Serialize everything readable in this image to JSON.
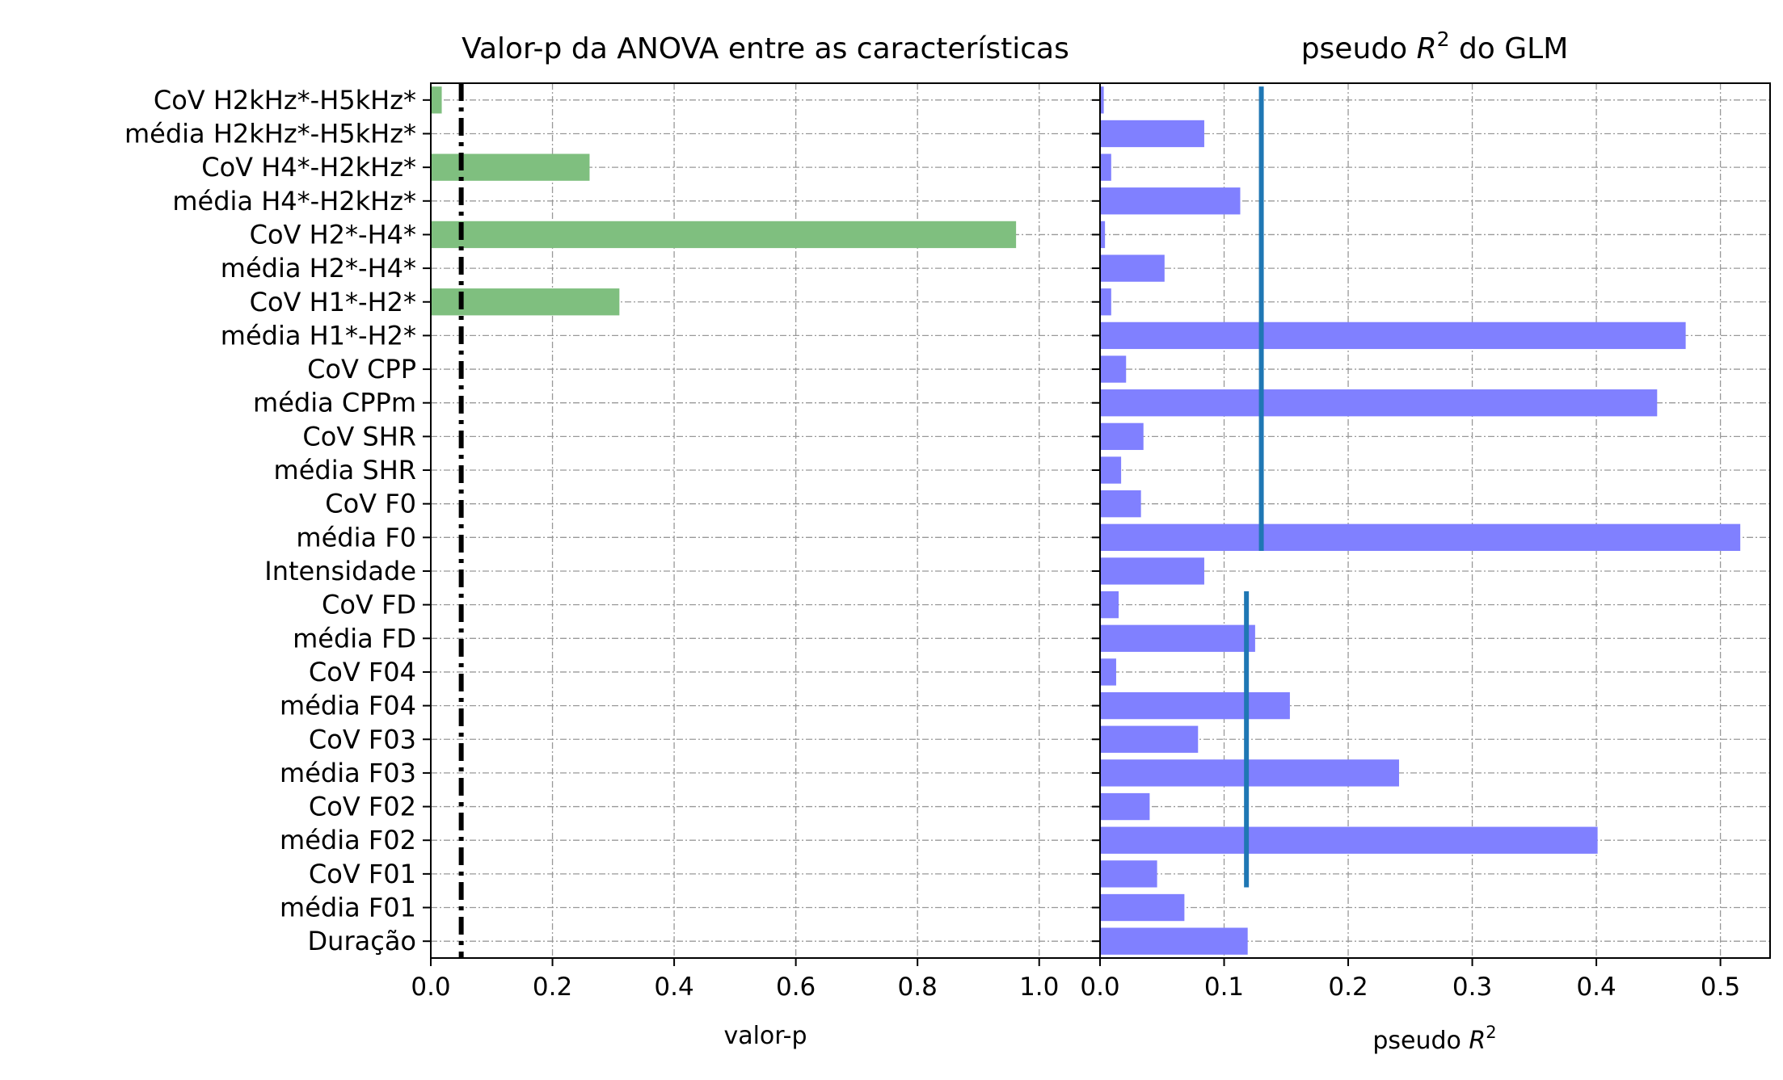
{
  "chart_data": [
    {
      "type": "bar",
      "orientation": "horizontal",
      "title": "Valor-p da ANOVA entre as características",
      "xlabel": "valor-p",
      "xlim": [
        0,
        1.1
      ],
      "xticks": [
        "0.0",
        "0.2",
        "0.4",
        "0.6",
        "0.8",
        "1.0"
      ],
      "grid": true,
      "bar_color": "#7fbf7f",
      "threshold_line": {
        "x": 0.05,
        "style": "dashdot",
        "color": "#000000"
      },
      "categories": [
        "CoV H2kHz*-H5kHz*",
        "média H2kHz*-H5kHz*",
        "CoV H4*-H2kHz*",
        "média H4*-H2kHz*",
        "CoV H2*-H4*",
        "média H2*-H4*",
        "CoV H1*-H2*",
        "média H1*-H2*",
        "CoV CPP",
        "média CPPm",
        "CoV SHR",
        "média SHR",
        "CoV F0",
        "média F0",
        "Intensidade",
        "CoV FD",
        "média FD",
        "CoV F04",
        "média F04",
        "CoV F03",
        "média F03",
        "CoV F02",
        "média F02",
        "CoV F01",
        "média F01",
        "Duração"
      ],
      "values": [
        0.018,
        0.0,
        0.261,
        0.0,
        0.962,
        0.0,
        0.31,
        0.0,
        0.0,
        0.0,
        0.0,
        0.0,
        0.0,
        0.0,
        0.0,
        0.0,
        0.0,
        0.0,
        0.0,
        0.0,
        0.0,
        0.0,
        0.0,
        0.0,
        0.0,
        0.0
      ]
    },
    {
      "type": "bar",
      "orientation": "horizontal",
      "title_prefix": "pseudo ",
      "title_math": "R",
      "title_sup": "2",
      "title_suffix": " do GLM",
      "xlabel_prefix": "pseudo ",
      "xlabel_math": "R",
      "xlabel_sup": "2",
      "xlim": [
        0,
        0.54
      ],
      "xticks": [
        "0.0",
        "0.1",
        "0.2",
        "0.3",
        "0.4",
        "0.5"
      ],
      "grid": true,
      "bar_color": "#8080ff",
      "reference_lines": [
        {
          "x": 0.13,
          "from_category": "CoV H2kHz*-H5kHz*",
          "to_category": "média F0",
          "color": "#1f77b4"
        },
        {
          "x": 0.118,
          "from_category": "CoV FD",
          "to_category": "CoV F01",
          "color": "#1f77b4"
        }
      ],
      "categories": [
        "CoV H2kHz*-H5kHz*",
        "média H2kHz*-H5kHz*",
        "CoV H4*-H2kHz*",
        "média H4*-H2kHz*",
        "CoV H2*-H4*",
        "média H2*-H4*",
        "CoV H1*-H2*",
        "média H1*-H2*",
        "CoV CPP",
        "média CPPm",
        "CoV SHR",
        "média SHR",
        "CoV F0",
        "média F0",
        "Intensidade",
        "CoV FD",
        "média FD",
        "CoV F04",
        "média F04",
        "CoV F03",
        "média F03",
        "CoV F02",
        "média F02",
        "CoV F01",
        "média F01",
        "Duração"
      ],
      "values": [
        0.003,
        0.084,
        0.009,
        0.113,
        0.004,
        0.052,
        0.009,
        0.472,
        0.021,
        0.449,
        0.035,
        0.017,
        0.033,
        0.516,
        0.084,
        0.015,
        0.125,
        0.013,
        0.153,
        0.079,
        0.241,
        0.04,
        0.401,
        0.046,
        0.068,
        0.119
      ]
    }
  ]
}
